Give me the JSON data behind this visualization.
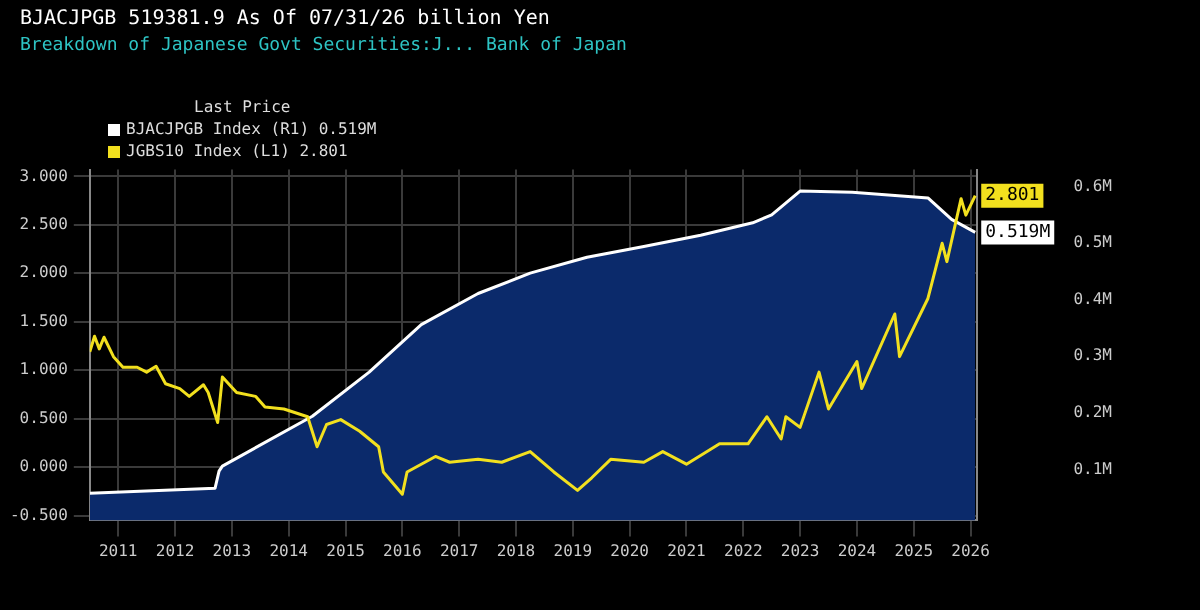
{
  "chart_data": {
    "type": "line",
    "title": "BJACJPGB 519381.9 As Of 07/31/26 billion Yen",
    "subtitle": "Breakdown of Japanese Govt Securities:J... Bank of Japan",
    "legend_title": "Last Price",
    "legend": "top left",
    "grid": true,
    "xlim": [
      "2011-01-01",
      "2026-08-15"
    ],
    "xticks": [
      {
        "value": "2011-07-01",
        "label": "2011"
      },
      {
        "value": "2012-07-01",
        "label": "2012"
      },
      {
        "value": "2013-07-01",
        "label": "2013"
      },
      {
        "value": "2014-07-01",
        "label": "2014"
      },
      {
        "value": "2015-07-01",
        "label": "2015"
      },
      {
        "value": "2016-07-01",
        "label": "2016"
      },
      {
        "value": "2017-07-01",
        "label": "2017"
      },
      {
        "value": "2018-07-01",
        "label": "2018"
      },
      {
        "value": "2019-07-01",
        "label": "2019"
      },
      {
        "value": "2020-07-01",
        "label": "2020"
      },
      {
        "value": "2021-07-01",
        "label": "2021"
      },
      {
        "value": "2022-07-01",
        "label": "2022"
      },
      {
        "value": "2023-07-01",
        "label": "2023"
      },
      {
        "value": "2024-07-01",
        "label": "2024"
      },
      {
        "value": "2025-07-01",
        "label": "2025"
      },
      {
        "value": "2026-07-01",
        "label": "2026"
      }
    ],
    "ylim": [
      -0.55,
      3.07
    ],
    "yticks": [
      {
        "value": -0.5,
        "label": "-0.500"
      },
      {
        "value": 0,
        "label": "0.000"
      },
      {
        "value": 0.5,
        "label": "0.500"
      },
      {
        "value": 1,
        "label": "1.000"
      },
      {
        "value": 1.5,
        "label": "1.500"
      },
      {
        "value": 2,
        "label": "2.000"
      },
      {
        "value": 2.5,
        "label": "2.500"
      },
      {
        "value": 3,
        "label": "3.000"
      }
    ],
    "y2lim": [
      0.01,
      0.63
    ],
    "y2ticks": [
      {
        "value": 0.1,
        "label": "0.1M"
      },
      {
        "value": 0.2,
        "label": "0.2M"
      },
      {
        "value": 0.3,
        "label": "0.3M"
      },
      {
        "value": 0.4,
        "label": "0.4M"
      },
      {
        "value": 0.5,
        "label": "0.5M"
      },
      {
        "value": 0.6,
        "label": "0.6M"
      }
    ],
    "series": [
      {
        "name": "BJACJPGB Index (R1) 0.519M",
        "type": "area",
        "axis": "y2",
        "color": "#ffffff",
        "x": [
          "2011-01-01",
          "2013-03-15",
          "2013-04-10",
          "2013-05-01",
          "2014-12-01",
          "2015-12-01",
          "2016-11-01",
          "2017-11-01",
          "2018-10-01",
          "2019-10-01",
          "2020-10-01",
          "2021-10-01",
          "2022-09-01",
          "2023-01-01",
          "2023-07-01",
          "2024-06-01",
          "2025-10-01",
          "2026-03-01",
          "2026-07-31"
        ],
        "values": [
          0.058,
          0.067,
          0.097,
          0.106,
          0.194,
          0.272,
          0.356,
          0.411,
          0.447,
          0.475,
          0.494,
          0.514,
          0.536,
          0.55,
          0.592,
          0.59,
          0.58,
          0.542,
          0.519
        ],
        "value_labels": [
          null,
          null,
          null,
          null,
          null,
          null,
          null,
          null,
          null,
          null,
          null,
          null,
          null,
          null,
          null,
          null,
          null,
          null,
          "0.519M"
        ]
      },
      {
        "name": "JGBS10 Index (L1) 2.801",
        "type": "line",
        "color": "#f2e01e",
        "x": [
          "2011-01-01",
          "2011-02-01",
          "2011-03-01",
          "2011-04-01",
          "2011-06-01",
          "2011-08-01",
          "2011-11-01",
          "2012-01-01",
          "2012-03-01",
          "2012-05-01",
          "2012-08-01",
          "2012-10-01",
          "2013-01-01",
          "2013-02-01",
          "2013-04-01",
          "2013-05-01",
          "2013-08-01",
          "2013-12-01",
          "2014-02-01",
          "2014-06-01",
          "2014-11-01",
          "2015-01-01",
          "2015-03-01",
          "2015-06-01",
          "2015-10-01",
          "2016-02-01",
          "2016-03-01",
          "2016-07-01",
          "2016-08-01",
          "2017-02-01",
          "2017-05-01",
          "2017-11-01",
          "2018-04-01",
          "2018-10-01",
          "2019-03-01",
          "2019-08-01",
          "2019-11-01",
          "2020-03-01",
          "2020-10-01",
          "2021-02-01",
          "2021-07-01",
          "2022-02-01",
          "2022-08-01",
          "2022-12-01",
          "2023-03-01",
          "2023-04-01",
          "2023-07-01",
          "2023-11-01",
          "2024-01-01",
          "2024-07-01",
          "2024-08-01",
          "2025-03-01",
          "2025-04-01",
          "2025-10-01",
          "2026-01-01",
          "2026-02-01",
          "2026-05-01",
          "2026-06-01",
          "2026-07-31"
        ],
        "values": [
          1.19,
          1.35,
          1.22,
          1.34,
          1.14,
          1.03,
          1.03,
          0.98,
          1.04,
          0.86,
          0.81,
          0.73,
          0.85,
          0.77,
          0.46,
          0.93,
          0.77,
          0.73,
          0.62,
          0.6,
          0.52,
          0.21,
          0.44,
          0.49,
          0.37,
          0.21,
          -0.05,
          -0.28,
          -0.05,
          0.11,
          0.05,
          0.08,
          0.05,
          0.16,
          -0.05,
          -0.24,
          -0.11,
          0.08,
          0.05,
          0.16,
          0.03,
          0.24,
          0.24,
          0.52,
          0.29,
          0.52,
          0.41,
          0.98,
          0.6,
          1.09,
          0.81,
          1.58,
          1.14,
          1.74,
          2.31,
          2.12,
          2.77,
          2.6,
          2.801
        ],
        "value_labels": [
          null,
          null,
          null,
          null,
          null,
          null,
          null,
          null,
          null,
          null,
          null,
          null,
          null,
          null,
          null,
          null,
          null,
          null,
          null,
          null,
          null,
          null,
          null,
          null,
          null,
          null,
          null,
          null,
          null,
          null,
          null,
          null,
          null,
          null,
          null,
          null,
          null,
          null,
          null,
          null,
          null,
          null,
          null,
          null,
          null,
          null,
          null,
          null,
          null,
          null,
          null,
          null,
          null,
          null,
          null,
          null,
          null,
          null,
          "2.801"
        ]
      }
    ]
  }
}
